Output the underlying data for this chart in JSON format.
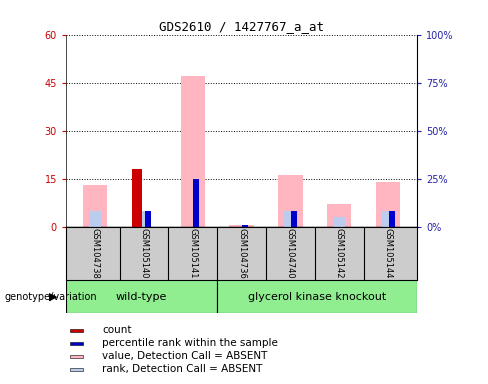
{
  "title": "GDS2610 / 1427767_a_at",
  "samples": [
    "GSM104738",
    "GSM105140",
    "GSM105141",
    "GSM104736",
    "GSM104740",
    "GSM105142",
    "GSM105144"
  ],
  "wt_indices": [
    0,
    1,
    2
  ],
  "gk_indices": [
    3,
    4,
    5,
    6
  ],
  "left_ylim": [
    0,
    60
  ],
  "right_ylim": [
    0,
    100
  ],
  "left_yticks": [
    0,
    15,
    30,
    45,
    60
  ],
  "right_yticks": [
    0,
    25,
    50,
    75,
    100
  ],
  "left_yticklabels": [
    "0",
    "15",
    "30",
    "45",
    "60"
  ],
  "right_yticklabels": [
    "0%",
    "25%",
    "50%",
    "75%",
    "100%"
  ],
  "count_values": [
    0,
    18,
    0,
    0,
    0,
    0,
    0
  ],
  "percentile_rank_values": [
    0,
    5,
    15,
    0.5,
    5,
    0,
    5
  ],
  "value_absent_values": [
    13,
    0,
    47,
    0.5,
    16,
    7,
    14
  ],
  "rank_absent_values": [
    5,
    5,
    0,
    0,
    5,
    3,
    5
  ],
  "count_color": "#CC0000",
  "percentile_rank_color": "#0000CC",
  "value_absent_color": "#FFB6C1",
  "rank_absent_color": "#BBCCEE",
  "bg_color": "#CCCCCC",
  "plot_bg": "#FFFFFF",
  "left_tick_color": "#CC0000",
  "right_tick_color": "#2222AA",
  "label_font_size": 7,
  "title_font_size": 9,
  "legend_font_size": 7.5,
  "bar_width": 0.25
}
